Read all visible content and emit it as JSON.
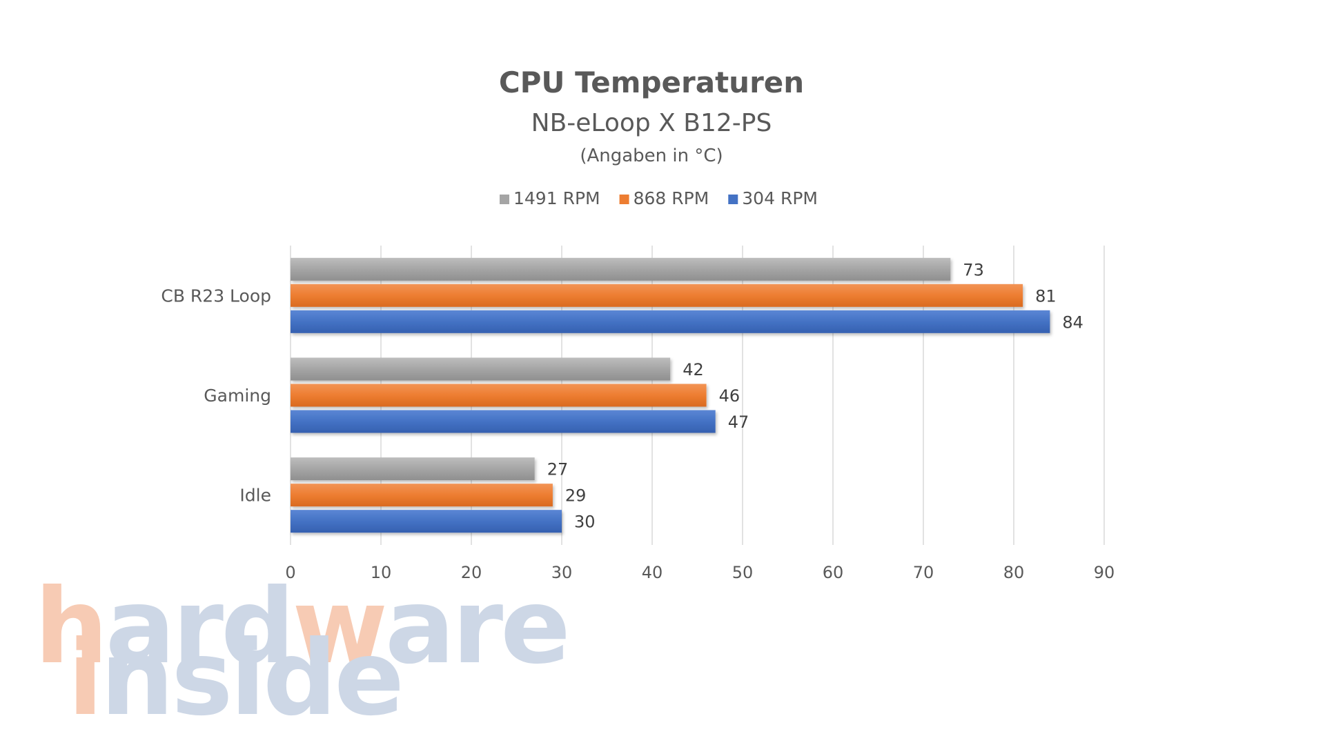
{
  "chart_data": {
    "type": "bar",
    "orientation": "horizontal",
    "title": "CPU Temperaturen",
    "subtitle": "NB-eLoop X B12-PS",
    "subtitle2": "(Angaben in °C)",
    "categories": [
      "CB R23 Loop",
      "Gaming",
      "Idle"
    ],
    "series": [
      {
        "name": "1491 RPM",
        "color": "#a5a5a5",
        "values": [
          73,
          42,
          27
        ]
      },
      {
        "name": "868 RPM",
        "color": "#ed7d31",
        "values": [
          81,
          46,
          29
        ]
      },
      {
        "name": "304 RPM",
        "color": "#4472c4",
        "values": [
          84,
          47,
          30
        ]
      }
    ],
    "xlim": [
      0,
      90
    ],
    "xticks": [
      0,
      10,
      20,
      30,
      40,
      50,
      60,
      70,
      80,
      90
    ],
    "grid": true,
    "legend_position": "top",
    "data_labels": true
  },
  "watermark": {
    "line1": "hardware",
    "line2": "inside",
    "colors": {
      "h": "#f7cbb4",
      "w": "#f7cbb4",
      "other": "#cdd7e6"
    }
  }
}
